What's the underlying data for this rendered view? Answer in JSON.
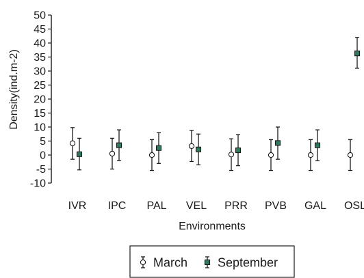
{
  "chart_data": {
    "type": "scatter",
    "title": "",
    "xlabel": "Environments",
    "ylabel": "Density(ind.m-2)",
    "ylim": [
      -10,
      50
    ],
    "yticks": [
      -10,
      -5,
      0,
      5,
      10,
      15,
      20,
      25,
      30,
      35,
      40,
      45,
      50
    ],
    "categories": [
      "IVR",
      "IPC",
      "PAL",
      "VEL",
      "PRR",
      "PVB",
      "GAL",
      "OSL"
    ],
    "grid": false,
    "legend_position": "bottom",
    "series": [
      {
        "name": "March",
        "marker": "circle",
        "fill": "#ffffff",
        "values": [
          4.2,
          0.5,
          0.0,
          3.2,
          0.2,
          0.0,
          0.0,
          0.0
        ],
        "err_lower": [
          -1.5,
          -5.0,
          -5.5,
          -2.3,
          -5.5,
          -5.5,
          -5.5,
          -5.5
        ],
        "err_upper": [
          9.8,
          6.0,
          5.5,
          8.8,
          5.8,
          5.5,
          5.5,
          5.5
        ]
      },
      {
        "name": "September",
        "marker": "square",
        "fill": "#2f7a5c",
        "values": [
          0.3,
          3.5,
          2.5,
          2.0,
          1.7,
          4.3,
          3.5,
          36.3
        ],
        "err_lower": [
          -5.3,
          -2.0,
          -3.0,
          -3.5,
          -3.8,
          -1.5,
          -2.0,
          31.0
        ],
        "err_upper": [
          6.0,
          9.0,
          8.0,
          7.5,
          7.3,
          10.0,
          9.0,
          42.0
        ]
      }
    ]
  }
}
